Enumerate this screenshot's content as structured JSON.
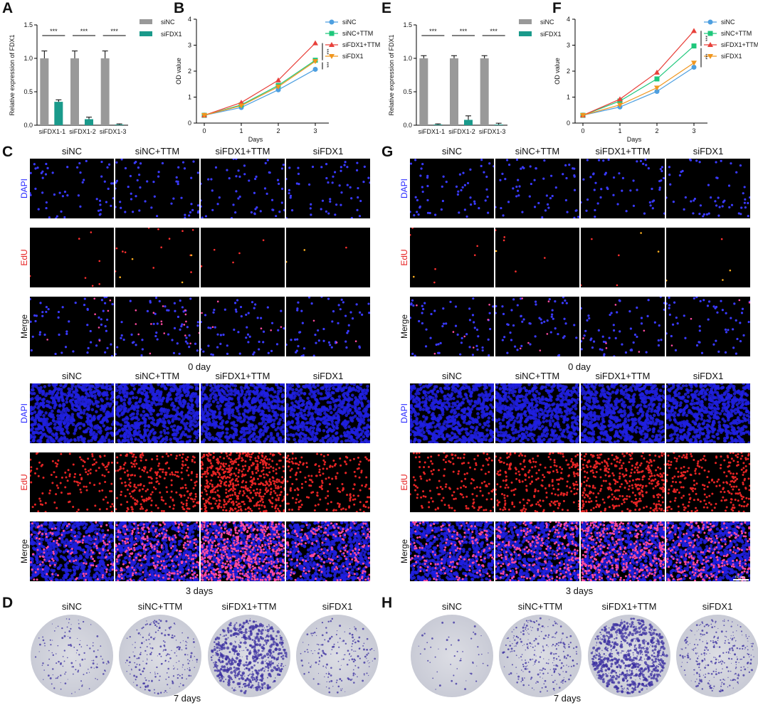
{
  "panels": {
    "A": "A",
    "B": "B",
    "C": "C",
    "D": "D",
    "E": "E",
    "F": "F",
    "G": "G",
    "H": "H"
  },
  "colors": {
    "siNC": "#999999",
    "siFDX1": "#1a9a8b",
    "line_siNC": "#4d9fe0",
    "line_siNC_TTM": "#1ec77b",
    "line_siFDX1_TTM": "#e8403a",
    "line_siFDX1": "#f0961e",
    "dapi": "#2828ff",
    "edu": "#e62020"
  },
  "chart_data": [
    {
      "id": "A",
      "type": "bar",
      "ylabel": "Relative expression of FDX1",
      "categories": [
        "siFDX1-1",
        "siFDX1-2",
        "siFDX1-3"
      ],
      "yticks": [
        "0.0",
        "0.5",
        "1.0",
        "1.5"
      ],
      "ylim": [
        0,
        1.5
      ],
      "series": [
        {
          "name": "siNC",
          "values": [
            1.0,
            1.0,
            1.0
          ],
          "errors": [
            0.11,
            0.11,
            0.11
          ]
        },
        {
          "name": "siFDX1",
          "values": [
            0.35,
            0.09,
            0.01
          ],
          "errors": [
            0.03,
            0.03,
            0.01
          ]
        }
      ],
      "significance": [
        "***",
        "***",
        "***"
      ]
    },
    {
      "id": "B",
      "type": "line",
      "xlabel": "Days",
      "ylabel": "OD value",
      "x": [
        0,
        1,
        2,
        3
      ],
      "xticks": [
        "0",
        "1",
        "2",
        "3"
      ],
      "yticks": [
        "0",
        "1",
        "2",
        "3",
        "4"
      ],
      "ylim": [
        0,
        4
      ],
      "series": [
        {
          "name": "siNC",
          "values": [
            0.3,
            0.6,
            1.28,
            2.07
          ]
        },
        {
          "name": "siNC+TTM",
          "values": [
            0.3,
            0.7,
            1.45,
            2.42
          ]
        },
        {
          "name": "siFDX1+TTM",
          "values": [
            0.3,
            0.79,
            1.65,
            3.08
          ]
        },
        {
          "name": "siFDX1",
          "values": [
            0.3,
            0.67,
            1.4,
            2.38
          ]
        }
      ],
      "significance": [
        "***",
        "***"
      ]
    },
    {
      "id": "E",
      "type": "bar",
      "ylabel": "Relative expression of FDX1",
      "categories": [
        "siFDX1-1",
        "siFDX1-2",
        "siFDX1-3"
      ],
      "yticks": [
        "0.0",
        "0.5",
        "1.0",
        "1.5"
      ],
      "ylim": [
        0,
        1.5
      ],
      "series": [
        {
          "name": "siNC",
          "values": [
            1.0,
            1.0,
            1.0
          ],
          "errors": [
            0.04,
            0.04,
            0.04
          ]
        },
        {
          "name": "siFDX1",
          "values": [
            0.01,
            0.08,
            0.01
          ],
          "errors": [
            0.01,
            0.06,
            0.02
          ]
        }
      ],
      "significance": [
        "***",
        "***",
        "***"
      ]
    },
    {
      "id": "F",
      "type": "line",
      "xlabel": "Days",
      "ylabel": "OD value",
      "x": [
        0,
        1,
        2,
        3
      ],
      "xticks": [
        "0",
        "1",
        "2",
        "3"
      ],
      "yticks": [
        "0",
        "1",
        "2",
        "3",
        "4"
      ],
      "ylim": [
        0,
        4
      ],
      "series": [
        {
          "name": "siNC",
          "values": [
            0.3,
            0.62,
            1.22,
            2.15
          ]
        },
        {
          "name": "siNC+TTM",
          "values": [
            0.3,
            0.85,
            1.7,
            2.97
          ]
        },
        {
          "name": "siFDX1+TTM",
          "values": [
            0.3,
            0.92,
            1.95,
            3.55
          ]
        },
        {
          "name": "siFDX1",
          "values": [
            0.3,
            0.7,
            1.36,
            2.32
          ]
        }
      ],
      "significance": [
        "***",
        "***"
      ]
    }
  ],
  "edu_panels": {
    "columns": [
      "siNC",
      "siNC+TTM",
      "siFDX1+TTM",
      "siFDX1"
    ],
    "rows": [
      "DAPI",
      "EdU",
      "Merge"
    ],
    "caption_day0": "0 day",
    "caption_day3": "3 days",
    "scale_bar": "50 μm"
  },
  "colony_panels": {
    "columns": [
      "siNC",
      "siNC+TTM",
      "siFDX1+TTM",
      "siFDX1"
    ],
    "caption": "7 days"
  }
}
